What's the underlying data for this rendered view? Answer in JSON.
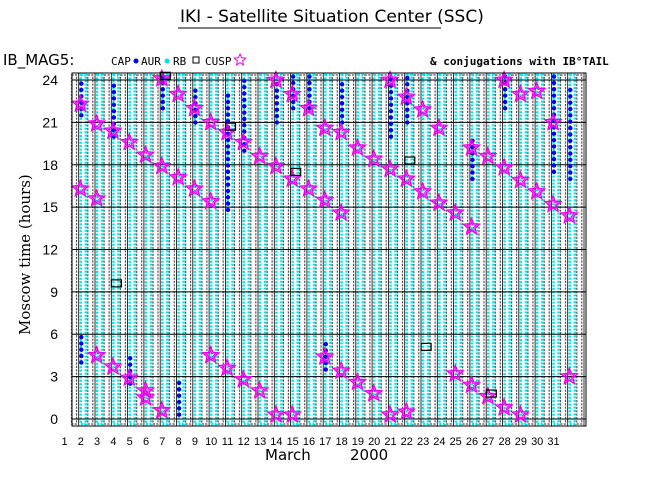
{
  "chart_data": {
    "type": "scatter",
    "title": "IKI - Satellite Situation Center (SSC)",
    "satellite": "IB_MAG5:",
    "legend": [
      {
        "name": "CAP",
        "marker": "dot",
        "color": "#0000ff"
      },
      {
        "name": "AUR",
        "marker": "dot",
        "color": "#00e5ee"
      },
      {
        "name": "RB",
        "marker": "square",
        "color": "#000000"
      },
      {
        "name": "CUSP",
        "marker": "star",
        "color": "#ee00ee"
      }
    ],
    "conjugations_label": "& conjugations with IB°TAIL",
    "xlabel_month": "March",
    "xlabel_year": "2000",
    "ylabel": "Moscow time (hours)",
    "days": [
      1,
      2,
      3,
      4,
      5,
      6,
      7,
      8,
      9,
      10,
      11,
      12,
      13,
      14,
      15,
      16,
      17,
      18,
      19,
      20,
      21,
      22,
      23,
      24,
      25,
      26,
      27,
      28,
      29,
      30,
      31
    ],
    "yticks": [
      0,
      3,
      6,
      9,
      12,
      15,
      18,
      21,
      24
    ],
    "ylim": [
      -0.5,
      24.5
    ],
    "cusp_stars": [
      {
        "day": 2,
        "hours": [
          22.3,
          16.3
        ]
      },
      {
        "day": 3,
        "hours": [
          20.9,
          15.6,
          4.5
        ]
      },
      {
        "day": 4,
        "hours": [
          20.4,
          3.7
        ]
      },
      {
        "day": 5,
        "hours": [
          19.6,
          2.9
        ]
      },
      {
        "day": 6,
        "hours": [
          18.7,
          2.0,
          1.5
        ]
      },
      {
        "day": 7,
        "hours": [
          24.1,
          17.9,
          0.6
        ]
      },
      {
        "day": 8,
        "hours": [
          23.0,
          17.1
        ]
      },
      {
        "day": 9,
        "hours": [
          22.0,
          16.3
        ]
      },
      {
        "day": 10,
        "hours": [
          21.0,
          15.4,
          4.5
        ]
      },
      {
        "day": 11,
        "hours": [
          20.3,
          3.6
        ]
      },
      {
        "day": 12,
        "hours": [
          19.6,
          2.8
        ]
      },
      {
        "day": 13,
        "hours": [
          18.6,
          2.0
        ]
      },
      {
        "day": 14,
        "hours": [
          24.0,
          17.9,
          0.3
        ]
      },
      {
        "day": 15,
        "hours": [
          23.0,
          17.0,
          0.3
        ]
      },
      {
        "day": 16,
        "hours": [
          22.0,
          16.3
        ]
      },
      {
        "day": 17,
        "hours": [
          20.6,
          15.5,
          4.4
        ]
      },
      {
        "day": 18,
        "hours": [
          20.3,
          14.6,
          3.4
        ]
      },
      {
        "day": 19,
        "hours": [
          19.2,
          2.6
        ]
      },
      {
        "day": 20,
        "hours": [
          18.4,
          1.8
        ]
      },
      {
        "day": 21,
        "hours": [
          24.0,
          17.7,
          0.3
        ]
      },
      {
        "day": 22,
        "hours": [
          22.8,
          17.0,
          0.5
        ]
      },
      {
        "day": 23,
        "hours": [
          21.9,
          16.1
        ]
      },
      {
        "day": 24,
        "hours": [
          20.6,
          15.3
        ]
      },
      {
        "day": 25,
        "hours": [
          14.6,
          3.2
        ]
      },
      {
        "day": 26,
        "hours": [
          19.2,
          13.6,
          2.4
        ]
      },
      {
        "day": 27,
        "hours": [
          18.6,
          1.6
        ]
      },
      {
        "day": 28,
        "hours": [
          24.0,
          17.8,
          0.8
        ]
      },
      {
        "day": 29,
        "hours": [
          23.0,
          16.9,
          0.3
        ]
      },
      {
        "day": 30,
        "hours": [
          23.2,
          16.1
        ]
      },
      {
        "day": 31,
        "hours": [
          21.0,
          15.2
        ]
      },
      {
        "day": 32,
        "hours": [
          14.4,
          3.0
        ]
      }
    ],
    "cap_runs": [
      {
        "day": 2,
        "from": 21.5,
        "to": 24.0
      },
      {
        "day": 2,
        "from": 4.0,
        "to": 6.0
      },
      {
        "day": 4,
        "from": 20.0,
        "to": 24.0
      },
      {
        "day": 5,
        "from": 2.5,
        "to": 4.5
      },
      {
        "day": 7,
        "from": 22.0,
        "to": 24.5
      },
      {
        "day": 8,
        "from": 0.3,
        "to": 3.0
      },
      {
        "day": 9,
        "from": 21.0,
        "to": 23.5
      },
      {
        "day": 11,
        "from": 14.8,
        "to": 23.0
      },
      {
        "day": 12,
        "from": 19.0,
        "to": 24.0
      },
      {
        "day": 14,
        "from": 21.0,
        "to": 24.0
      },
      {
        "day": 15,
        "from": 22.0,
        "to": 25.0
      },
      {
        "day": 16,
        "from": 22.0,
        "to": 24.5
      },
      {
        "day": 17,
        "from": 3.5,
        "to": 5.5
      },
      {
        "day": 18,
        "from": 21.0,
        "to": 24.0
      },
      {
        "day": 21,
        "from": 20.0,
        "to": 24.5
      },
      {
        "day": 22,
        "from": 21.0,
        "to": 24.5
      },
      {
        "day": 26,
        "from": 17.0,
        "to": 20.0
      },
      {
        "day": 28,
        "from": 22.0,
        "to": 24.5
      },
      {
        "day": 31,
        "from": 17.5,
        "to": 24.5
      },
      {
        "day": 32,
        "from": 17.0,
        "to": 23.5
      }
    ],
    "rb_big_boxes": [
      {
        "day": 4,
        "hour": 9.6
      },
      {
        "day": 7,
        "hour": 24.3
      },
      {
        "day": 11,
        "hour": 20.7
      },
      {
        "day": 15,
        "hour": 17.5
      },
      {
        "day": 22,
        "hour": 18.3
      },
      {
        "day": 23,
        "hour": 5.1
      },
      {
        "day": 27,
        "hour": 1.8
      }
    ],
    "grid": true
  }
}
